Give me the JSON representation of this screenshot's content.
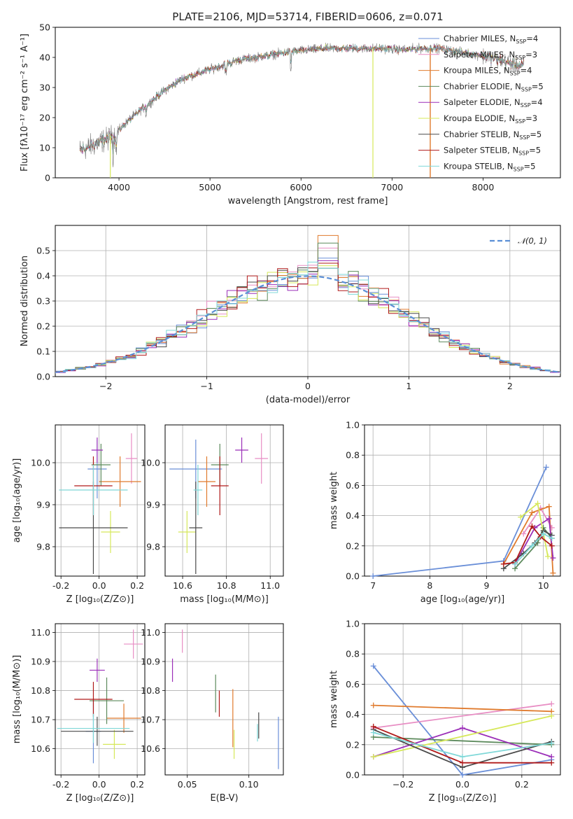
{
  "title": "PLATE=2106, MJD=53714, FIBERID=0606, z=0.071",
  "models": [
    {
      "key": "cm",
      "color": "#6a8fd8",
      "label": "Chabrier MILES, N",
      "sub": "SSP",
      "eq": "=4"
    },
    {
      "key": "sm",
      "color": "#e88ec4",
      "label": "Salpeter MILES, N",
      "sub": "SSP",
      "eq": "=3"
    },
    {
      "key": "km",
      "color": "#e07b2e",
      "label": "Kroupa MILES, N",
      "sub": "SSP",
      "eq": "=4"
    },
    {
      "key": "ce",
      "color": "#5c8a5c",
      "label": "Chabrier ELODIE, N",
      "sub": "SSP",
      "eq": "=5"
    },
    {
      "key": "se",
      "color": "#9b2fb8",
      "label": "Salpeter ELODIE, N",
      "sub": "SSP",
      "eq": "=4"
    },
    {
      "key": "ke",
      "color": "#d6e85a",
      "label": "Kroupa ELODIE, N",
      "sub": "SSP",
      "eq": "=3"
    },
    {
      "key": "cs",
      "color": "#4a4a4a",
      "label": "Chabrier STELIB, N",
      "sub": "SSP",
      "eq": "=5"
    },
    {
      "key": "ss",
      "color": "#b01a1a",
      "label": "Salpeter STELIB, N",
      "sub": "SSP",
      "eq": "=5"
    },
    {
      "key": "ks",
      "color": "#7fd8d8",
      "label": "Kroupa STELIB, N",
      "sub": "SSP",
      "eq": "=5"
    }
  ],
  "chart_data": [
    {
      "id": "spectrum",
      "type": "line",
      "xlabel": "wavelength [Angstrom, rest frame]",
      "ylabel": "Flux [fλ10⁻¹⁷ erg cm⁻² s⁻¹ A⁻¹]",
      "xlim": [
        3300,
        8850
      ],
      "ylim": [
        0,
        50
      ],
      "xticks": [
        4000,
        5000,
        6000,
        7000,
        8000
      ],
      "yticks": [
        0,
        10,
        20,
        30,
        40,
        50
      ],
      "continuum_x": [
        3570,
        3800,
        3950,
        4100,
        4300,
        4500,
        4700,
        4900,
        5100,
        5300,
        5500,
        5700,
        5900,
        6100,
        6300,
        6500,
        6700,
        6900,
        7100,
        7300,
        7500,
        7700,
        7900,
        8100,
        8300,
        8450
      ],
      "continuum_y": [
        9,
        12,
        14,
        19,
        24,
        29,
        33,
        35,
        37,
        39,
        40,
        41,
        42,
        42.5,
        43,
        43,
        43,
        43,
        42.5,
        43,
        43,
        42,
        41,
        40,
        38,
        37
      ]
    },
    {
      "id": "residuals",
      "type": "bar",
      "xlabel": "(data-model)/error",
      "ylabel": "Normed distribution",
      "xlim": [
        -2.5,
        2.5
      ],
      "ylim": [
        0,
        0.6
      ],
      "xticks": [
        -2,
        -1,
        0,
        1,
        2
      ],
      "yticks": [
        0,
        0.1,
        0.2,
        0.3,
        0.4,
        0.5
      ],
      "legend": "𝒩(0, 1)",
      "legend_loc": "top-right",
      "peak_values": {
        "cm": 0.47,
        "sm": 0.51,
        "km": 0.56,
        "ce": 0.53,
        "se": 0.46,
        "ke": 0.44,
        "cs": 0.43,
        "ss": 0.45,
        "ks": 0.43
      }
    },
    {
      "id": "age_vs_Z",
      "type": "scatter",
      "xlabel": "Z [log₁₀(Z/Z⊙)]",
      "ylabel": "age  [log₁₀(age/yr)]",
      "xlim": [
        -0.23,
        0.24
      ],
      "ylim": [
        9.73,
        10.09
      ],
      "xticks": [
        -0.2,
        0.0,
        0.2
      ],
      "yticks": [
        9.8,
        9.9,
        10.0
      ],
      "points": [
        {
          "m": "cm",
          "x": -0.01,
          "xe": 0.05,
          "y": 9.985,
          "ye": 0.07
        },
        {
          "m": "sm",
          "x": 0.17,
          "xe": 0.03,
          "y": 10.01,
          "ye": 0.06
        },
        {
          "m": "km",
          "x": 0.11,
          "xe": 0.11,
          "y": 9.955,
          "ye": 0.06
        },
        {
          "m": "ce",
          "x": 0.01,
          "xe": 0.05,
          "y": 9.995,
          "ye": 0.05
        },
        {
          "m": "se",
          "x": -0.01,
          "xe": 0.03,
          "y": 10.03,
          "ye": 0.03
        },
        {
          "m": "ke",
          "x": 0.06,
          "xe": 0.05,
          "y": 9.835,
          "ye": 0.05
        },
        {
          "m": "cs",
          "x": -0.03,
          "xe": 0.18,
          "y": 9.845,
          "ye": 0.11
        },
        {
          "m": "ss",
          "x": -0.03,
          "xe": 0.1,
          "y": 9.945,
          "ye": 0.07
        },
        {
          "m": "ks",
          "x": -0.03,
          "xe": 0.18,
          "y": 9.935,
          "ye": 0.06
        }
      ]
    },
    {
      "id": "age_vs_mass",
      "type": "scatter",
      "xlabel": "mass [log₁₀(M/M⊙)]",
      "ylabel": "",
      "xlim": [
        10.52,
        11.06
      ],
      "ylim": [
        9.73,
        10.09
      ],
      "xticks": [
        10.6,
        10.8,
        11.0
      ],
      "yticks": [
        9.8,
        9.9,
        10.0
      ],
      "points": [
        {
          "m": "cm",
          "x": 10.66,
          "xe": 0.12,
          "y": 9.985,
          "ye": 0.07
        },
        {
          "m": "sm",
          "x": 10.96,
          "xe": 0.03,
          "y": 10.01,
          "ye": 0.06
        },
        {
          "m": "km",
          "x": 10.71,
          "xe": 0.04,
          "y": 9.955,
          "ye": 0.06
        },
        {
          "m": "ce",
          "x": 10.77,
          "xe": 0.04,
          "y": 9.995,
          "ye": 0.05
        },
        {
          "m": "se",
          "x": 10.87,
          "xe": 0.03,
          "y": 10.03,
          "ye": 0.03
        },
        {
          "m": "ke",
          "x": 10.62,
          "xe": 0.04,
          "y": 9.835,
          "ye": 0.05
        },
        {
          "m": "cs",
          "x": 10.66,
          "xe": 0.03,
          "y": 9.845,
          "ye": 0.11
        },
        {
          "m": "ss",
          "x": 10.77,
          "xe": 0.04,
          "y": 9.945,
          "ye": 0.07
        },
        {
          "m": "ks",
          "x": 10.67,
          "xe": 0.02,
          "y": 9.935,
          "ye": 0.06
        }
      ]
    },
    {
      "id": "weight_vs_age",
      "type": "line",
      "xlabel": "age  [log₁₀(age/yr)]",
      "ylabel": "mass weight",
      "xlim": [
        6.85,
        10.3
      ],
      "ylim": [
        0,
        1
      ],
      "xticks": [
        7,
        8,
        9,
        10
      ],
      "yticks": [
        0,
        0.2,
        0.4,
        0.6,
        0.8,
        1.0
      ],
      "series": [
        {
          "m": "cm",
          "x": [
            7.0,
            9.3,
            10.05
          ],
          "y": [
            0.0,
            0.1,
            0.72
          ]
        },
        {
          "m": "sm",
          "x": [
            9.65,
            9.95,
            10.15
          ],
          "y": [
            0.28,
            0.45,
            0.32
          ]
        },
        {
          "m": "km",
          "x": [
            9.3,
            9.8,
            10.1,
            10.17
          ],
          "y": [
            0.08,
            0.42,
            0.46,
            0.02
          ]
        },
        {
          "m": "ce",
          "x": [
            9.5,
            9.9,
            10.0,
            10.15
          ],
          "y": [
            0.05,
            0.22,
            0.32,
            0.25
          ]
        },
        {
          "m": "se",
          "x": [
            9.5,
            9.85,
            10.1,
            10.17
          ],
          "y": [
            0.08,
            0.32,
            0.38,
            0.12
          ]
        },
        {
          "m": "ke",
          "x": [
            9.6,
            9.9,
            10.08
          ],
          "y": [
            0.39,
            0.48,
            0.13
          ]
        },
        {
          "m": "cs",
          "x": [
            9.3,
            9.65,
            9.85,
            10.0,
            10.15
          ],
          "y": [
            0.05,
            0.15,
            0.22,
            0.3,
            0.27
          ]
        },
        {
          "m": "ss",
          "x": [
            9.3,
            9.5,
            9.8,
            9.95,
            10.15
          ],
          "y": [
            0.08,
            0.09,
            0.33,
            0.26,
            0.2
          ]
        },
        {
          "m": "ks",
          "x": [
            9.5,
            9.8,
            10.0,
            10.15
          ],
          "y": [
            0.08,
            0.2,
            0.28,
            0.25
          ]
        }
      ]
    },
    {
      "id": "mass_vs_Z",
      "type": "scatter",
      "xlabel": "Z [log₁₀(Z/Z⊙)]",
      "ylabel": "mass [log₁₀(M/M⊙)]",
      "xlim": [
        -0.23,
        0.24
      ],
      "ylim": [
        10.51,
        11.03
      ],
      "xticks": [
        -0.2,
        0.0,
        0.2
      ],
      "yticks": [
        10.6,
        10.7,
        10.8,
        10.9,
        11.0
      ],
      "points": [
        {
          "m": "cm",
          "x": -0.03,
          "xe": 0.04,
          "y": 10.66,
          "ye": 0.11
        },
        {
          "m": "sm",
          "x": 0.18,
          "xe": 0.05,
          "y": 10.96,
          "ye": 0.05
        },
        {
          "m": "km",
          "x": 0.13,
          "xe": 0.09,
          "y": 10.705,
          "ye": 0.05
        },
        {
          "m": "ce",
          "x": 0.04,
          "xe": 0.09,
          "y": 10.765,
          "ye": 0.08
        },
        {
          "m": "se",
          "x": -0.01,
          "xe": 0.04,
          "y": 10.87,
          "ye": 0.04
        },
        {
          "m": "ke",
          "x": 0.08,
          "xe": 0.06,
          "y": 10.615,
          "ye": 0.05
        },
        {
          "m": "cs",
          "x": -0.01,
          "xe": 0.19,
          "y": 10.66,
          "ye": 0.05
        },
        {
          "m": "ss",
          "x": -0.03,
          "xe": 0.1,
          "y": 10.77,
          "ye": 0.06
        },
        {
          "m": "ks",
          "x": -0.03,
          "xe": 0.19,
          "y": 10.67,
          "ye": 0.05
        }
      ]
    },
    {
      "id": "mass_vs_ebv",
      "type": "scatter",
      "xlabel": "E(B-V)",
      "ylabel": "",
      "xlim": [
        0.032,
        0.128
      ],
      "ylim": [
        10.51,
        11.03
      ],
      "xticks": [
        0.05,
        0.1
      ],
      "yticks": [
        10.6,
        10.7,
        10.8,
        10.9,
        11.0
      ],
      "points": [
        {
          "m": "cm",
          "x": 0.124,
          "xe": 0,
          "y": 10.62,
          "ye": 0.09
        },
        {
          "m": "sm",
          "x": 0.046,
          "xe": 0,
          "y": 10.97,
          "ye": 0.04
        },
        {
          "m": "km",
          "x": 0.087,
          "xe": 0,
          "y": 10.705,
          "ye": 0.1
        },
        {
          "m": "ce",
          "x": 0.073,
          "xe": 0,
          "y": 10.79,
          "ye": 0.065
        },
        {
          "m": "se",
          "x": 0.038,
          "xe": 0,
          "y": 10.87,
          "ye": 0.04
        },
        {
          "m": "ke",
          "x": 0.088,
          "xe": 0,
          "y": 10.615,
          "ye": 0.05
        },
        {
          "m": "cs",
          "x": 0.108,
          "xe": 0,
          "y": 10.68,
          "ye": 0.045
        },
        {
          "m": "ss",
          "x": 0.076,
          "xe": 0,
          "y": 10.755,
          "ye": 0.045
        },
        {
          "m": "ks",
          "x": 0.107,
          "xe": 0,
          "y": 10.655,
          "ye": 0.03
        }
      ]
    },
    {
      "id": "weight_vs_Z",
      "type": "line",
      "xlabel": "Z [log₁₀(Z/Z⊙)]",
      "ylabel": "mass weight",
      "xlim": [
        -0.33,
        0.33
      ],
      "ylim": [
        0,
        1
      ],
      "xticks": [
        -0.2,
        0.0,
        0.2
      ],
      "yticks": [
        0,
        0.2,
        0.4,
        0.6,
        0.8,
        1.0
      ],
      "series": [
        {
          "m": "cm",
          "x": [
            -0.3,
            0.0,
            0.3
          ],
          "y": [
            0.72,
            0.0,
            0.1
          ]
        },
        {
          "m": "sm",
          "x": [
            -0.3,
            0.3
          ],
          "y": [
            0.31,
            0.47
          ]
        },
        {
          "m": "km",
          "x": [
            -0.3,
            0.3
          ],
          "y": [
            0.46,
            0.42
          ]
        },
        {
          "m": "ce",
          "x": [
            -0.3,
            0.3
          ],
          "y": [
            0.25,
            0.2
          ]
        },
        {
          "m": "se",
          "x": [
            -0.3,
            0.0,
            0.3
          ],
          "y": [
            0.12,
            0.31,
            0.12
          ]
        },
        {
          "m": "ke",
          "x": [
            -0.3,
            0.3
          ],
          "y": [
            0.12,
            0.39
          ]
        },
        {
          "m": "cs",
          "x": [
            -0.3,
            0.0,
            0.3
          ],
          "y": [
            0.3,
            0.05,
            0.22
          ]
        },
        {
          "m": "ss",
          "x": [
            -0.3,
            0.0,
            0.3
          ],
          "y": [
            0.32,
            0.08,
            0.08
          ]
        },
        {
          "m": "ks",
          "x": [
            -0.3,
            0.0,
            0.3
          ],
          "y": [
            0.28,
            0.12,
            0.21
          ]
        }
      ]
    }
  ]
}
